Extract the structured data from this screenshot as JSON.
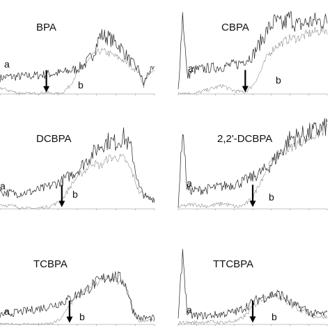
{
  "chart_data": [
    {
      "type": "line",
      "title": "BPA",
      "series": [
        {
          "name": "a",
          "x": [
            0,
            0.05,
            0.1,
            0.2,
            0.3,
            0.4,
            0.5,
            0.55,
            0.6,
            0.65,
            0.7,
            0.78,
            0.85,
            0.9,
            0.93,
            0.96,
            1.0
          ],
          "values": [
            0.2,
            0.22,
            0.22,
            0.23,
            0.25,
            0.27,
            0.32,
            0.38,
            0.5,
            0.75,
            0.72,
            0.6,
            0.4,
            0.3,
            0.12,
            0.28,
            0.3
          ]
        },
        {
          "name": "b",
          "x": [
            0,
            0.1,
            0.2,
            0.3,
            0.35,
            0.4,
            0.45,
            0.5,
            0.55,
            0.6,
            0.65,
            0.7,
            0.78,
            0.85,
            0.9,
            0.93,
            0.96,
            1.0
          ],
          "values": [
            0.08,
            0.02,
            0.0,
            0.02,
            0.0,
            0.01,
            0.1,
            0.28,
            0.38,
            0.48,
            0.55,
            0.52,
            0.45,
            0.35,
            0.28,
            0.1,
            0.26,
            0.28
          ]
        }
      ],
      "annotations": [
        {
          "type": "arrow",
          "x": 0.3
        }
      ]
    },
    {
      "type": "line",
      "title": "CBPA",
      "series": [
        {
          "name": "a",
          "x": [
            0,
            0.03,
            0.06,
            0.1,
            0.2,
            0.3,
            0.4,
            0.5,
            0.55,
            0.6,
            0.65,
            0.7,
            0.75,
            0.8,
            0.9,
            1.0
          ],
          "values": [
            0.05,
            0.95,
            0.2,
            0.28,
            0.3,
            0.32,
            0.35,
            0.45,
            0.6,
            0.75,
            0.85,
            0.8,
            0.9,
            0.8,
            0.85,
            0.85
          ]
        },
        {
          "name": "b",
          "x": [
            0,
            0.1,
            0.2,
            0.3,
            0.35,
            0.4,
            0.45,
            0.5,
            0.55,
            0.6,
            0.65,
            0.7,
            0.75,
            0.8,
            0.9,
            1.0
          ],
          "values": [
            0.02,
            0.0,
            0.05,
            0.1,
            0.05,
            0.03,
            0.02,
            0.1,
            0.25,
            0.45,
            0.55,
            0.6,
            0.65,
            0.65,
            0.72,
            0.75
          ]
        }
      ],
      "annotations": [
        {
          "type": "arrow",
          "x": 0.45
        }
      ]
    },
    {
      "type": "line",
      "title": "DCBPA",
      "series": [
        {
          "name": "a",
          "x": [
            0,
            0.1,
            0.2,
            0.3,
            0.4,
            0.5,
            0.55,
            0.6,
            0.65,
            0.7,
            0.75,
            0.8,
            0.85,
            0.9,
            0.95,
            1.0
          ],
          "values": [
            0.2,
            0.18,
            0.2,
            0.25,
            0.33,
            0.45,
            0.55,
            0.65,
            0.75,
            0.8,
            0.78,
            0.85,
            0.7,
            0.25,
            0.12,
            0.12
          ]
        },
        {
          "name": "b",
          "x": [
            0,
            0.1,
            0.2,
            0.3,
            0.35,
            0.4,
            0.45,
            0.5,
            0.55,
            0.6,
            0.65,
            0.7,
            0.8,
            0.85,
            0.9,
            1.0
          ],
          "values": [
            0.05,
            0.03,
            0.0,
            0.02,
            0.05,
            0.1,
            0.25,
            0.38,
            0.45,
            0.55,
            0.5,
            0.6,
            0.6,
            0.45,
            0.2,
            0.1
          ]
        }
      ],
      "annotations": [
        {
          "type": "arrow",
          "x": 0.4
        }
      ]
    },
    {
      "type": "line",
      "title": "2,2'-DCBPA",
      "series": [
        {
          "name": "a",
          "x": [
            0,
            0.03,
            0.06,
            0.1,
            0.2,
            0.3,
            0.4,
            0.5,
            0.6,
            0.7,
            0.75,
            0.8,
            0.85,
            0.9,
            0.95,
            1.0
          ],
          "values": [
            0.05,
            0.9,
            0.22,
            0.2,
            0.22,
            0.25,
            0.28,
            0.35,
            0.45,
            0.65,
            0.78,
            0.8,
            0.82,
            0.85,
            0.88,
            0.92
          ]
        },
        {
          "name": "b",
          "x": [
            0,
            0.1,
            0.2,
            0.3,
            0.4,
            0.45,
            0.5,
            0.55,
            0.6,
            0.65,
            0.7,
            0.8,
            0.9,
            1.0
          ],
          "values": [
            0.02,
            0.05,
            0.03,
            0.06,
            0.02,
            0.05,
            0.12,
            0.3,
            0.45,
            0.58,
            0.62,
            0.72,
            0.8,
            0.88
          ]
        }
      ],
      "annotations": [
        {
          "type": "arrow",
          "x": 0.5
        }
      ]
    },
    {
      "type": "line",
      "title": "TCBPA",
      "series": [
        {
          "name": "a",
          "x": [
            0,
            0.1,
            0.2,
            0.3,
            0.4,
            0.45,
            0.5,
            0.55,
            0.6,
            0.65,
            0.7,
            0.75,
            0.8,
            0.83,
            0.86,
            0.9,
            1.0
          ],
          "values": [
            0.12,
            0.15,
            0.18,
            0.22,
            0.28,
            0.32,
            0.38,
            0.42,
            0.5,
            0.55,
            0.62,
            0.6,
            0.55,
            0.4,
            0.18,
            0.08,
            0.08
          ]
        },
        {
          "name": "b",
          "x": [
            0,
            0.1,
            0.2,
            0.3,
            0.35,
            0.4,
            0.45,
            0.5,
            0.55,
            0.6,
            0.65,
            0.7,
            0.75,
            0.8,
            0.83,
            0.86,
            0.9,
            1.0
          ],
          "values": [
            0.0,
            0.0,
            0.0,
            0.0,
            0.02,
            0.08,
            0.25,
            0.35,
            0.42,
            0.5,
            0.55,
            0.58,
            0.55,
            0.52,
            0.4,
            0.15,
            0.05,
            0.05
          ]
        }
      ],
      "annotations": [
        {
          "type": "arrow",
          "x": 0.45
        }
      ]
    },
    {
      "type": "line",
      "title": "TTCBPA",
      "series": [
        {
          "name": "a",
          "x": [
            0,
            0.03,
            0.06,
            0.1,
            0.2,
            0.3,
            0.4,
            0.5,
            0.55,
            0.6,
            0.65,
            0.7,
            0.75,
            0.8,
            0.85,
            0.9,
            1.0
          ],
          "values": [
            0.05,
            0.85,
            0.12,
            0.1,
            0.1,
            0.12,
            0.15,
            0.25,
            0.3,
            0.32,
            0.35,
            0.33,
            0.25,
            0.2,
            0.18,
            0.12,
            0.12
          ]
        },
        {
          "name": "b",
          "x": [
            0,
            0.1,
            0.2,
            0.3,
            0.4,
            0.45,
            0.5,
            0.55,
            0.6,
            0.65,
            0.7,
            0.75,
            0.8,
            0.85,
            0.9,
            1.0
          ],
          "values": [
            0.02,
            0.02,
            0.03,
            0.02,
            0.04,
            0.1,
            0.2,
            0.28,
            0.33,
            0.35,
            0.3,
            0.22,
            0.18,
            0.15,
            0.1,
            0.08
          ]
        }
      ],
      "annotations": [
        {
          "type": "arrow",
          "x": 0.5
        }
      ]
    }
  ]
}
